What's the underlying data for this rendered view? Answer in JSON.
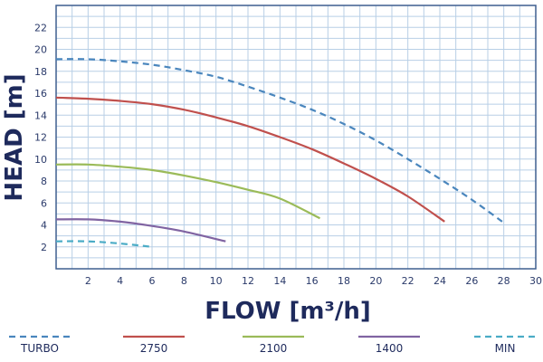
{
  "chart_data": {
    "type": "line",
    "xlabel": "FLOW [m³/h]",
    "ylabel": "HEAD [m]",
    "xlim": [
      0,
      30
    ],
    "ylim": [
      0,
      24
    ],
    "x_ticks": [
      2,
      4,
      6,
      8,
      10,
      12,
      14,
      16,
      18,
      20,
      22,
      24,
      26,
      28,
      30
    ],
    "y_ticks": [
      2,
      4,
      6,
      8,
      10,
      12,
      14,
      16,
      18,
      20,
      22
    ],
    "grid": true,
    "legend_position": "bottom",
    "series": [
      {
        "name": "TURBO",
        "color": "#4a86bd",
        "style": "dashed",
        "points": [
          [
            0,
            19.1
          ],
          [
            2,
            19.1
          ],
          [
            4,
            18.9
          ],
          [
            6,
            18.6
          ],
          [
            8,
            18.1
          ],
          [
            10,
            17.5
          ],
          [
            12,
            16.6
          ],
          [
            14,
            15.6
          ],
          [
            16,
            14.5
          ],
          [
            18,
            13.2
          ],
          [
            20,
            11.7
          ],
          [
            22,
            10.0
          ],
          [
            24,
            8.2
          ],
          [
            26,
            6.3
          ],
          [
            27.9,
            4.3
          ]
        ]
      },
      {
        "name": "2750",
        "color": "#c0504d",
        "style": "solid",
        "points": [
          [
            0,
            15.6
          ],
          [
            2,
            15.5
          ],
          [
            4,
            15.3
          ],
          [
            6,
            15.0
          ],
          [
            8,
            14.5
          ],
          [
            10,
            13.8
          ],
          [
            12,
            13.0
          ],
          [
            14,
            12.0
          ],
          [
            16,
            10.9
          ],
          [
            18,
            9.6
          ],
          [
            20,
            8.2
          ],
          [
            22,
            6.6
          ],
          [
            24.3,
            4.3
          ]
        ]
      },
      {
        "name": "2100",
        "color": "#9bbb59",
        "style": "solid",
        "points": [
          [
            0,
            9.5
          ],
          [
            2,
            9.5
          ],
          [
            4,
            9.3
          ],
          [
            6,
            9.0
          ],
          [
            8,
            8.5
          ],
          [
            10,
            7.9
          ],
          [
            12,
            7.2
          ],
          [
            14,
            6.4
          ],
          [
            16.5,
            4.6
          ]
        ]
      },
      {
        "name": "1400",
        "color": "#8064a2",
        "style": "solid",
        "points": [
          [
            0,
            4.5
          ],
          [
            2,
            4.5
          ],
          [
            4,
            4.3
          ],
          [
            6,
            3.9
          ],
          [
            8,
            3.4
          ],
          [
            10.6,
            2.5
          ]
        ]
      },
      {
        "name": "MIN",
        "color": "#4bacc6",
        "style": "dashed",
        "points": [
          [
            0,
            2.5
          ],
          [
            2,
            2.5
          ],
          [
            4,
            2.3
          ],
          [
            6.0,
            2.0
          ]
        ]
      }
    ]
  }
}
